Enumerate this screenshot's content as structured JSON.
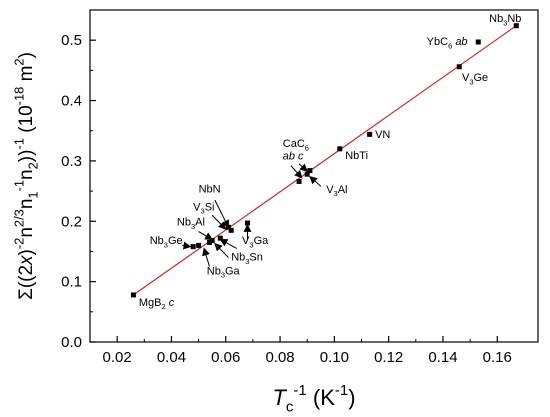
{
  "chart_data": {
    "type": "scatter",
    "title": "",
    "xlabel_main": "T",
    "xlabel_sub": "c",
    "xlabel_sup": "-1",
    "xlabel_unit": "(K",
    "xlabel_unit_sup": "-1",
    "xlabel_unit_close": ")",
    "ylabel_parts": [
      {
        "t": "Σ((2",
        "s": "n"
      },
      {
        "t": "x",
        "s": "i"
      },
      {
        "t": ")",
        "s": "n"
      },
      {
        "t": "-2",
        "s": "sup"
      },
      {
        "t": "n",
        "s": "n"
      },
      {
        "t": "2/3",
        "s": "sup"
      },
      {
        "t": "n",
        "s": "n"
      },
      {
        "t": "1",
        "s": "sub"
      },
      {
        "t": "-1",
        "s": "sup"
      },
      {
        "t": "n",
        "s": "n"
      },
      {
        "t": "2",
        "s": "sub"
      },
      {
        "t": "))",
        "s": "n"
      },
      {
        "t": "-1",
        "s": "sup"
      },
      {
        "t": "  (10",
        "s": "n"
      },
      {
        "t": "-18",
        "s": "sup"
      },
      {
        "t": " m",
        "s": "n"
      },
      {
        "t": "2",
        "s": "sup"
      },
      {
        "t": ")",
        "s": "n"
      }
    ],
    "xlim": [
      0.01,
      0.175
    ],
    "ylim": [
      0.0,
      0.55
    ],
    "x_ticks": [
      0.02,
      0.04,
      0.06,
      0.08,
      0.1,
      0.12,
      0.14,
      0.16
    ],
    "x_tick_labels": [
      "0.02",
      "0.04",
      "0.06",
      "0.08",
      "0.10",
      "0.12",
      "0.14",
      "0.16"
    ],
    "y_ticks": [
      0.0,
      0.1,
      0.2,
      0.3,
      0.4,
      0.5
    ],
    "y_tick_labels": [
      "0.0",
      "0.1",
      "0.2",
      "0.3",
      "0.4",
      "0.5"
    ],
    "grid": false,
    "fit_line": {
      "color": "#e02020",
      "x": [
        0.026,
        0.167
      ],
      "y": [
        0.078,
        0.524
      ]
    },
    "marker_color": "#000000",
    "points": [
      {
        "x": 0.026,
        "y": 0.078
      },
      {
        "x": 0.048,
        "y": 0.158
      },
      {
        "x": 0.05,
        "y": 0.16
      },
      {
        "x": 0.054,
        "y": 0.165
      },
      {
        "x": 0.055,
        "y": 0.168
      },
      {
        "x": 0.058,
        "y": 0.172
      },
      {
        "x": 0.061,
        "y": 0.19
      },
      {
        "x": 0.062,
        "y": 0.185
      },
      {
        "x": 0.068,
        "y": 0.197
      },
      {
        "x": 0.087,
        "y": 0.266
      },
      {
        "x": 0.09,
        "y": 0.278
      },
      {
        "x": 0.091,
        "y": 0.284
      },
      {
        "x": 0.102,
        "y": 0.32
      },
      {
        "x": 0.113,
        "y": 0.344
      },
      {
        "x": 0.146,
        "y": 0.456
      },
      {
        "x": 0.153,
        "y": 0.497
      },
      {
        "x": 0.167,
        "y": 0.524
      }
    ],
    "labels": [
      {
        "parts": [
          {
            "t": "Nb",
            "s": "n"
          },
          {
            "t": "3",
            "s": "sub"
          },
          {
            "t": "Nb",
            "s": "n"
          }
        ],
        "x": 0.157,
        "y": 0.53
      },
      {
        "parts": [
          {
            "t": "YbC",
            "s": "n"
          },
          {
            "t": "6",
            "s": "sub"
          },
          {
            "t": " ",
            "s": "n"
          },
          {
            "t": "ab",
            "s": "i"
          }
        ],
        "x": 0.134,
        "y": 0.492
      },
      {
        "parts": [
          {
            "t": "V",
            "s": "n"
          },
          {
            "t": "3",
            "s": "sub"
          },
          {
            "t": "Ge",
            "s": "n"
          }
        ],
        "x": 0.147,
        "y": 0.432
      },
      {
        "parts": [
          {
            "t": "VN",
            "s": "n"
          }
        ],
        "x": 0.115,
        "y": 0.338
      },
      {
        "parts": [
          {
            "t": "NbTi",
            "s": "n"
          }
        ],
        "x": 0.104,
        "y": 0.303
      },
      {
        "parts": [
          {
            "t": "CaC",
            "s": "n"
          },
          {
            "t": "6",
            "s": "sub"
          }
        ],
        "x": 0.081,
        "y": 0.323
      },
      {
        "parts": [
          {
            "t": "ab c",
            "s": "i"
          }
        ],
        "x": 0.081,
        "y": 0.302
      },
      {
        "parts": [
          {
            "t": "V",
            "s": "n"
          },
          {
            "t": "3",
            "s": "sub"
          },
          {
            "t": "Al",
            "s": "n"
          }
        ],
        "x": 0.097,
        "y": 0.247
      },
      {
        "parts": [
          {
            "t": "NbN",
            "s": "n"
          }
        ],
        "x": 0.05,
        "y": 0.248
      },
      {
        "parts": [
          {
            "t": "V",
            "s": "n"
          },
          {
            "t": "3",
            "s": "sub"
          },
          {
            "t": "Si",
            "s": "n"
          }
        ],
        "x": 0.048,
        "y": 0.218
      },
      {
        "parts": [
          {
            "t": "Nb",
            "s": "n"
          },
          {
            "t": "3",
            "s": "sub"
          },
          {
            "t": "Al",
            "s": "n"
          }
        ],
        "x": 0.042,
        "y": 0.193
      },
      {
        "parts": [
          {
            "t": "Nb",
            "s": "n"
          },
          {
            "t": "3",
            "s": "sub"
          },
          {
            "t": "Ge",
            "s": "n"
          }
        ],
        "x": 0.032,
        "y": 0.162
      },
      {
        "parts": [
          {
            "t": "V",
            "s": "n"
          },
          {
            "t": "3",
            "s": "sub"
          },
          {
            "t": "Ga",
            "s": "n"
          }
        ],
        "x": 0.066,
        "y": 0.162
      },
      {
        "parts": [
          {
            "t": "Nb",
            "s": "n"
          },
          {
            "t": "3",
            "s": "sub"
          },
          {
            "t": "Sn",
            "s": "n"
          }
        ],
        "x": 0.062,
        "y": 0.135
      },
      {
        "parts": [
          {
            "t": "Nb",
            "s": "n"
          },
          {
            "t": "3",
            "s": "sub"
          },
          {
            "t": "Ga",
            "s": "n"
          }
        ],
        "x": 0.053,
        "y": 0.112
      },
      {
        "parts": [
          {
            "t": "MgB",
            "s": "n"
          },
          {
            "t": "2",
            "s": "sub"
          },
          {
            "t": " ",
            "s": "n"
          },
          {
            "t": "c",
            "s": "i"
          }
        ],
        "x": 0.028,
        "y": 0.06
      }
    ],
    "arrows": [
      {
        "x1": 0.084,
        "y1": 0.292,
        "x2": 0.088,
        "y2": 0.272
      },
      {
        "x1": 0.087,
        "y1": 0.295,
        "x2": 0.09,
        "y2": 0.283
      },
      {
        "x1": 0.095,
        "y1": 0.258,
        "x2": 0.091,
        "y2": 0.274
      },
      {
        "x1": 0.056,
        "y1": 0.235,
        "x2": 0.061,
        "y2": 0.19
      },
      {
        "x1": 0.055,
        "y1": 0.21,
        "x2": 0.06,
        "y2": 0.187
      },
      {
        "x1": 0.05,
        "y1": 0.183,
        "x2": 0.055,
        "y2": 0.17
      },
      {
        "x1": 0.044,
        "y1": 0.16,
        "x2": 0.047,
        "y2": 0.158
      },
      {
        "x1": 0.068,
        "y1": 0.17,
        "x2": 0.068,
        "y2": 0.194
      },
      {
        "x1": 0.064,
        "y1": 0.155,
        "x2": 0.058,
        "y2": 0.17
      },
      {
        "x1": 0.061,
        "y1": 0.14,
        "x2": 0.056,
        "y2": 0.163
      },
      {
        "x1": 0.054,
        "y1": 0.125,
        "x2": 0.052,
        "y2": 0.155
      }
    ]
  }
}
